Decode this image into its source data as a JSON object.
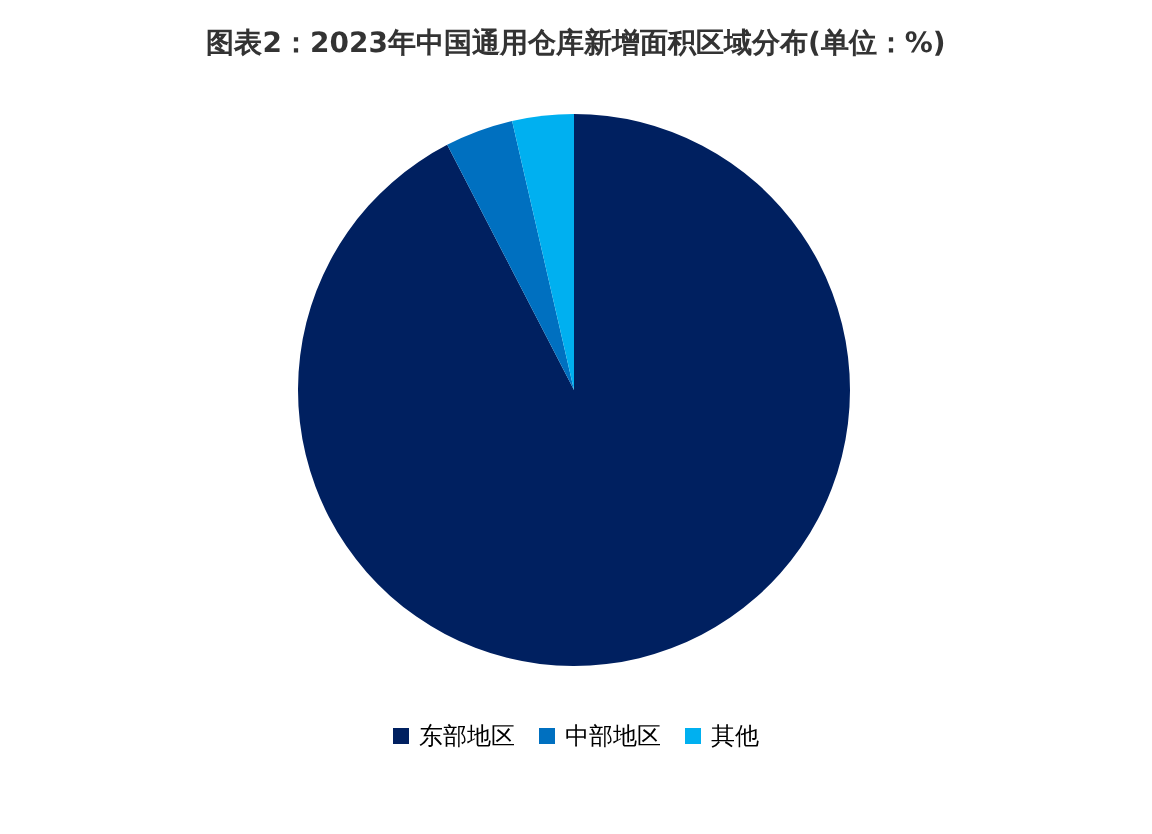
{
  "chart_data": {
    "type": "pie",
    "title": "图表2：2023年中国通用仓库新增面积区域分布(单位：%)",
    "categories": [
      "东部地区",
      "中部地区",
      "其他"
    ],
    "values": [
      92.4,
      4.0,
      3.6
    ],
    "colors": [
      "#002060",
      "#0070c0",
      "#00b0f0"
    ],
    "legend": "bottom"
  }
}
